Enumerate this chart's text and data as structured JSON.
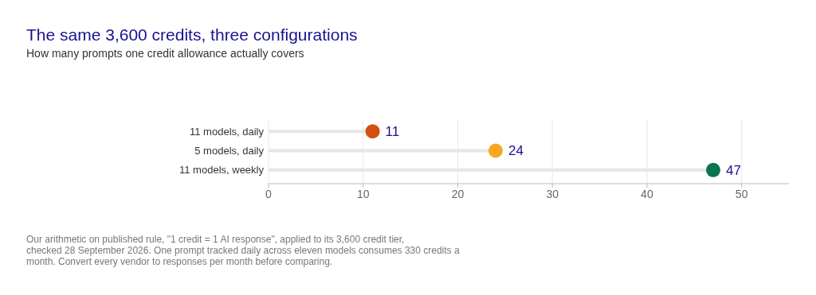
{
  "chart_data": {
    "type": "lollipop",
    "orientation": "horizontal",
    "title": "The same 3,600 credits, three configurations",
    "subtitle": "How many prompts one credit allowance actually covers",
    "categories": [
      "11 models, daily",
      "5 models, daily",
      "11 models, weekly"
    ],
    "values": [
      11,
      24,
      47
    ],
    "colors": [
      "#d4500f",
      "#f5a623",
      "#0a7350"
    ],
    "xlim": [
      0,
      55
    ],
    "xticks": [
      0,
      10,
      20,
      30,
      40,
      50
    ],
    "grid": "x",
    "data_labels": true,
    "marker": "circle",
    "annotations": [
      "Our arithmetic on published rule, \"1 credit = 1 AI response\", applied to its 3,600 credit tier, checked 28 September 2026. One prompt tracked daily across eleven models consumes 330 credits a month. Convert every vendor to responses per month before comparing."
    ]
  }
}
